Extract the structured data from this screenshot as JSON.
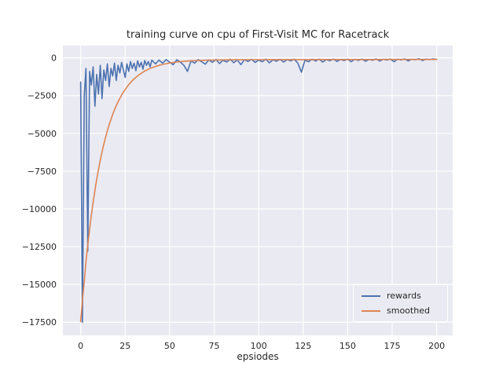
{
  "chart_data": {
    "type": "line",
    "title": "training curve on cpu of First-Visit MC for Racetrack",
    "xlabel": "epsiodes",
    "ylabel": "",
    "grid": true,
    "legend_position": "lower right",
    "axes_background": "#eaeaf2",
    "grid_color": "#ffffff",
    "tick_color": "#262626",
    "xticks": [
      0,
      25,
      50,
      75,
      100,
      125,
      150,
      175,
      200
    ],
    "yticks": [
      0,
      -2500,
      -5000,
      -7500,
      -10000,
      -12500,
      -15000,
      -17500
    ],
    "xlim": [
      -10,
      209
    ],
    "ylim": [
      -18372,
      812
    ],
    "x": [
      0,
      1,
      2,
      3,
      4,
      5,
      6,
      7,
      8,
      9,
      10,
      11,
      12,
      13,
      14,
      15,
      16,
      17,
      18,
      19,
      20,
      21,
      22,
      23,
      24,
      25,
      26,
      27,
      28,
      29,
      30,
      31,
      32,
      33,
      34,
      35,
      36,
      37,
      38,
      39,
      40,
      42,
      44,
      46,
      48,
      50,
      52,
      54,
      56,
      58,
      60,
      62,
      64,
      66,
      68,
      70,
      72,
      74,
      76,
      78,
      80,
      82,
      84,
      86,
      88,
      90,
      92,
      94,
      96,
      98,
      100,
      102,
      104,
      106,
      108,
      110,
      112,
      114,
      116,
      118,
      120,
      122,
      124,
      126,
      128,
      130,
      132,
      134,
      136,
      138,
      140,
      142,
      144,
      146,
      148,
      150,
      152,
      154,
      156,
      158,
      160,
      162,
      164,
      166,
      168,
      170,
      172,
      174,
      176,
      178,
      180,
      182,
      184,
      186,
      188,
      190,
      192,
      194,
      196,
      198,
      200
    ],
    "series": [
      {
        "name": "rewards",
        "color": "#4c72b0",
        "values": [
          -1600,
          -17500,
          -2500,
          -700,
          -12800,
          -900,
          -1800,
          -600,
          -3200,
          -1100,
          -2400,
          -500,
          -2700,
          -800,
          -1500,
          -400,
          -1900,
          -700,
          -1200,
          -350,
          -1500,
          -500,
          -1000,
          -300,
          -800,
          -1300,
          -400,
          -900,
          -250,
          -700,
          -350,
          -850,
          -200,
          -600,
          -300,
          -750,
          -180,
          -500,
          -250,
          -600,
          -150,
          -400,
          -150,
          -350,
          -120,
          -300,
          -450,
          -130,
          -280,
          -500,
          -900,
          -200,
          -350,
          -120,
          -260,
          -420,
          -140,
          -300,
          -110,
          -380,
          -160,
          -280,
          -100,
          -320,
          -140,
          -450,
          -120,
          -240,
          -100,
          -300,
          -150,
          -260,
          -90,
          -330,
          -130,
          -220,
          -100,
          -280,
          -120,
          -200,
          -90,
          -350,
          -950,
          -150,
          -260,
          -100,
          -210,
          -90,
          -280,
          -120,
          -190,
          -80,
          -240,
          -110,
          -180,
          -90,
          -260,
          -100,
          -170,
          -80,
          -230,
          -110,
          -160,
          -70,
          -210,
          -100,
          -150,
          -80,
          -260,
          -90,
          -140,
          -70,
          -200,
          -100,
          -130,
          -60,
          -180,
          -90,
          -120,
          -70,
          -110
        ]
      },
      {
        "name": "smoothed",
        "color": "#dd8452",
        "values": [
          -17470,
          -16020,
          -14820,
          -13490,
          -12370,
          -11350,
          -10420,
          -9560,
          -8770,
          -8050,
          -7390,
          -6780,
          -6230,
          -5720,
          -5250,
          -4825,
          -4433,
          -4074,
          -3744,
          -3443,
          -3167,
          -2913,
          -2681,
          -2467,
          -2271,
          -2093,
          -1928,
          -1777,
          -1640,
          -1513,
          -1397,
          -1291,
          -1194,
          -1104,
          -1022,
          -947,
          -878,
          -816,
          -757,
          -705,
          -656,
          -569,
          -498,
          -438,
          -387,
          -344,
          -309,
          -278,
          -253,
          -232,
          -214,
          -199,
          -187,
          -176,
          -167,
          -160,
          -154,
          -148,
          -144,
          -140,
          -137,
          -134,
          -132,
          -130,
          -128,
          -127,
          -126,
          -125,
          -124,
          -123,
          -123,
          -122,
          -122,
          -121,
          -121,
          -120,
          -120,
          -120,
          -119,
          -119,
          -119,
          -118,
          -118,
          -118,
          -117,
          -117,
          -117,
          -116,
          -116,
          -116,
          -115,
          -115,
          -115,
          -114,
          -114,
          -114,
          -113,
          -113,
          -113,
          -112,
          -112,
          -112,
          -111,
          -111,
          -111,
          -110,
          -110,
          -110,
          -109,
          -109,
          -109,
          -108,
          -108,
          -108,
          -107,
          -107,
          -107,
          -106,
          -106,
          -106,
          -105
        ]
      }
    ]
  }
}
